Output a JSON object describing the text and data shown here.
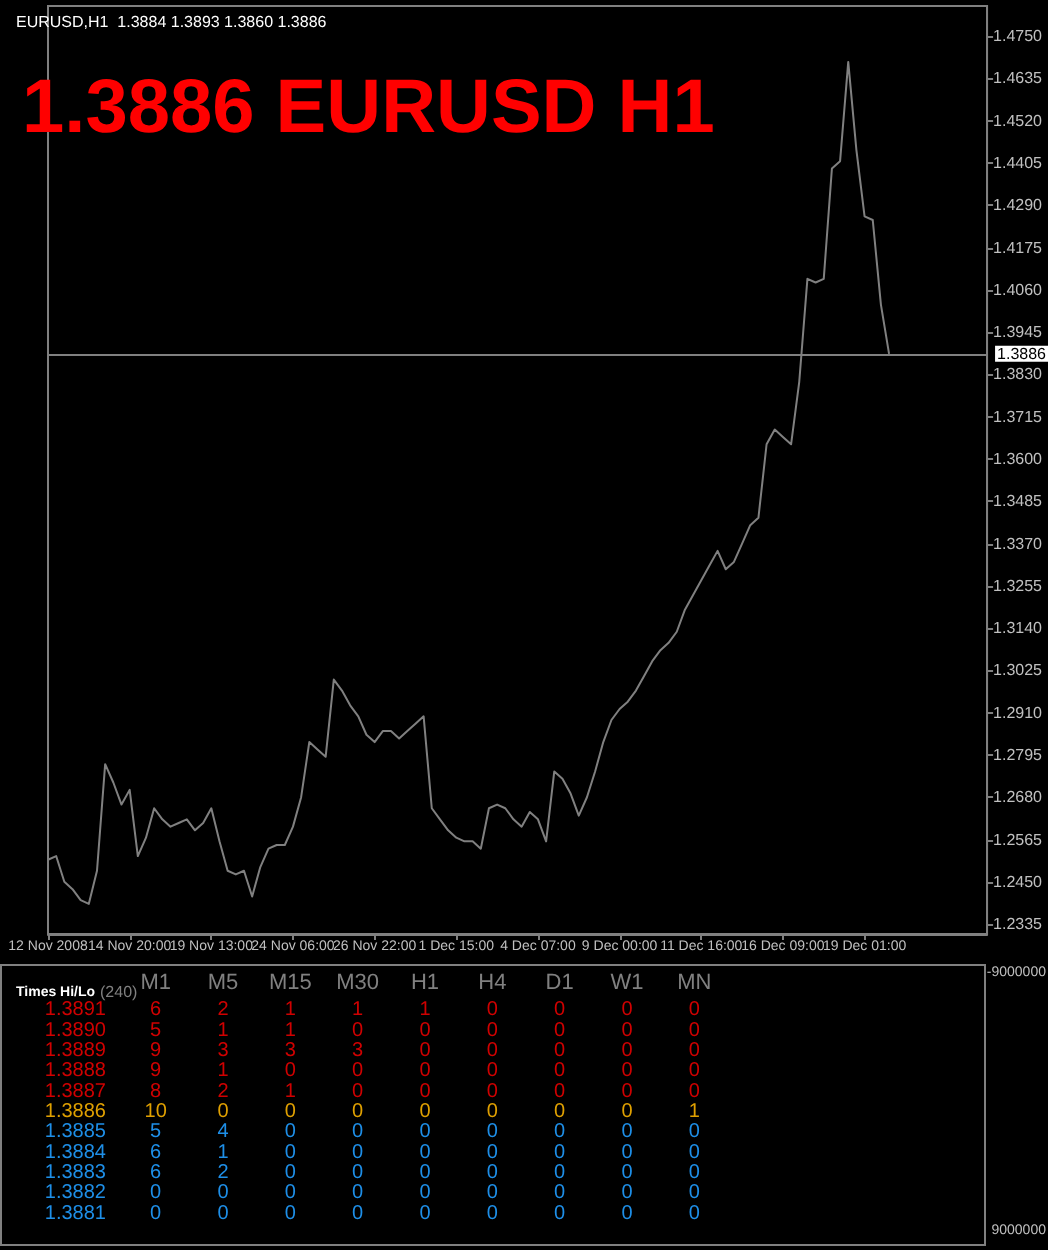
{
  "chart_data": [
    {
      "type": "line",
      "title": "1.3886 EURUSD H1",
      "subtitle": "EURUSD,H1  1.3884 1.3893 1.3860 1.3886",
      "categories": [
        "12 Nov 2008",
        null,
        null,
        null,
        null,
        null,
        null,
        null,
        null,
        null,
        "14 Nov 20:00",
        null,
        null,
        null,
        null,
        null,
        null,
        null,
        null,
        null,
        "19 Nov 13:00",
        null,
        null,
        null,
        null,
        null,
        null,
        null,
        null,
        null,
        "24 Nov 06:00",
        null,
        null,
        null,
        null,
        null,
        null,
        null,
        null,
        null,
        "26 Nov 22:00",
        null,
        null,
        null,
        null,
        null,
        null,
        null,
        null,
        null,
        "1 Dec 15:00",
        null,
        null,
        null,
        null,
        null,
        null,
        null,
        null,
        null,
        "4 Dec 07:00",
        null,
        null,
        null,
        null,
        null,
        null,
        null,
        null,
        null,
        "9 Dec 00:00",
        null,
        null,
        null,
        null,
        null,
        null,
        null,
        null,
        null,
        "11 Dec 16:00",
        null,
        null,
        null,
        null,
        null,
        null,
        null,
        null,
        null,
        "16 Dec 09:00",
        null,
        null,
        null,
        null,
        null,
        null,
        null,
        null,
        null,
        "19 Dec 01:00",
        null,
        null,
        null,
        null,
        null,
        null,
        null,
        null,
        null,
        null,
        null,
        null,
        null,
        null,
        null
      ],
      "series": [
        {
          "color": "#808080",
          "values": [
            1.251,
            1.252,
            1.245,
            1.243,
            1.24,
            1.239,
            1.248,
            1.277,
            1.272,
            1.266,
            1.27,
            1.252,
            1.257,
            1.265,
            1.262,
            1.26,
            1.261,
            1.262,
            1.259,
            1.261,
            1.265,
            1.256,
            1.248,
            1.247,
            1.248,
            1.241,
            1.249,
            1.254,
            1.255,
            1.255,
            1.26,
            1.268,
            1.283,
            1.281,
            1.279,
            1.3,
            1.297,
            1.293,
            1.29,
            1.285,
            1.283,
            1.286,
            1.286,
            1.284,
            1.286,
            1.288,
            1.29,
            1.265,
            1.262,
            1.259,
            1.257,
            1.256,
            1.256,
            1.254,
            1.265,
            1.266,
            1.265,
            1.262,
            1.26,
            1.264,
            1.262,
            1.256,
            1.275,
            1.273,
            1.269,
            1.263,
            1.268,
            1.275,
            1.283,
            1.289,
            1.292,
            1.294,
            1.297,
            1.301,
            1.305,
            1.308,
            1.31,
            1.313,
            1.319,
            1.323,
            1.327,
            1.331,
            1.335,
            1.33,
            1.332,
            1.337,
            1.342,
            1.344,
            1.364,
            1.368,
            1.366,
            1.364,
            1.381,
            1.409,
            1.408,
            1.409,
            1.439,
            1.441,
            1.468,
            1.444,
            1.426,
            1.425,
            1.402,
            1.3886,
            null,
            null,
            null,
            null,
            null,
            null,
            null,
            null,
            null,
            null,
            null,
            null
          ]
        }
      ],
      "ylim": [
        1.2308,
        1.4832
      ],
      "yticks": [
        1.2335,
        {
          "value": 1.245,
          "label": "1.2450"
        },
        1.2565,
        {
          "value": 1.268,
          "label": "1.2680"
        },
        1.2795,
        {
          "value": 1.291,
          "label": "1.2910"
        },
        1.3025,
        {
          "value": 1.314,
          "label": "1.3140"
        },
        1.3255,
        {
          "value": 1.337,
          "label": "1.3370"
        },
        1.3485,
        {
          "value": 1.36,
          "label": "1.3600"
        },
        1.3715,
        {
          "value": 1.383,
          "label": "1.3830"
        },
        1.3945,
        {
          "value": 1.406,
          "label": "1.4060"
        },
        1.4175,
        {
          "value": 1.429,
          "label": "1.4290"
        },
        1.4405,
        {
          "value": 1.452,
          "label": "1.4520"
        },
        1.4635,
        {
          "value": 1.475,
          "label": "1.4750"
        }
      ],
      "ref_lines": [
        {
          "axis": "y",
          "value": 1.3886,
          "label": "1.3886",
          "color": "#808080"
        }
      ],
      "marker": "none",
      "line_style": "solid",
      "grid": false
    },
    {
      "type": "heatmap",
      "title": "Times Hi/Lo",
      "subtitle": "(240)",
      "categories": [
        "M1",
        "M5",
        "M15",
        "M30",
        "H1",
        "H4",
        "D1",
        "W1",
        "MN"
      ],
      "y_categories": [
        "1.3891",
        "1.3890",
        "1.3889",
        "1.3888",
        "1.3887",
        "1.3886",
        "1.3885",
        "1.3884",
        "1.3883",
        "1.3882",
        "1.3881"
      ],
      "cells": [
        [
          6,
          2,
          1,
          1,
          1,
          0,
          0,
          0,
          0
        ],
        [
          5,
          1,
          1,
          0,
          0,
          0,
          0,
          0,
          0
        ],
        [
          9,
          3,
          3,
          3,
          0,
          0,
          0,
          0,
          0
        ],
        [
          9,
          1,
          0,
          0,
          0,
          0,
          0,
          0,
          0
        ],
        [
          8,
          2,
          1,
          0,
          0,
          0,
          0,
          0,
          0
        ],
        [
          10,
          0,
          0,
          0,
          0,
          0,
          0,
          0,
          1
        ],
        [
          5,
          4,
          0,
          0,
          0,
          0,
          0,
          0,
          0
        ],
        [
          6,
          1,
          0,
          0,
          0,
          0,
          0,
          0,
          0
        ],
        [
          6,
          2,
          0,
          0,
          0,
          0,
          0,
          0,
          0
        ],
        [
          0,
          0,
          0,
          0,
          0,
          0,
          0,
          0,
          0
        ],
        [
          0,
          0,
          0,
          0,
          0,
          0,
          0,
          0,
          0
        ]
      ],
      "colors": [
        "#d00000",
        "#d00000",
        "#d00000",
        "#d00000",
        "#d00000",
        "#e0a000",
        "#1e8fe8",
        "#1e8fe8",
        "#1e8fe8",
        "#1e8fe8",
        "#1e8fe8"
      ],
      "color": "#000000",
      "data_labels": true,
      "annotations": [
        "-9000000",
        "9000000"
      ]
    }
  ]
}
